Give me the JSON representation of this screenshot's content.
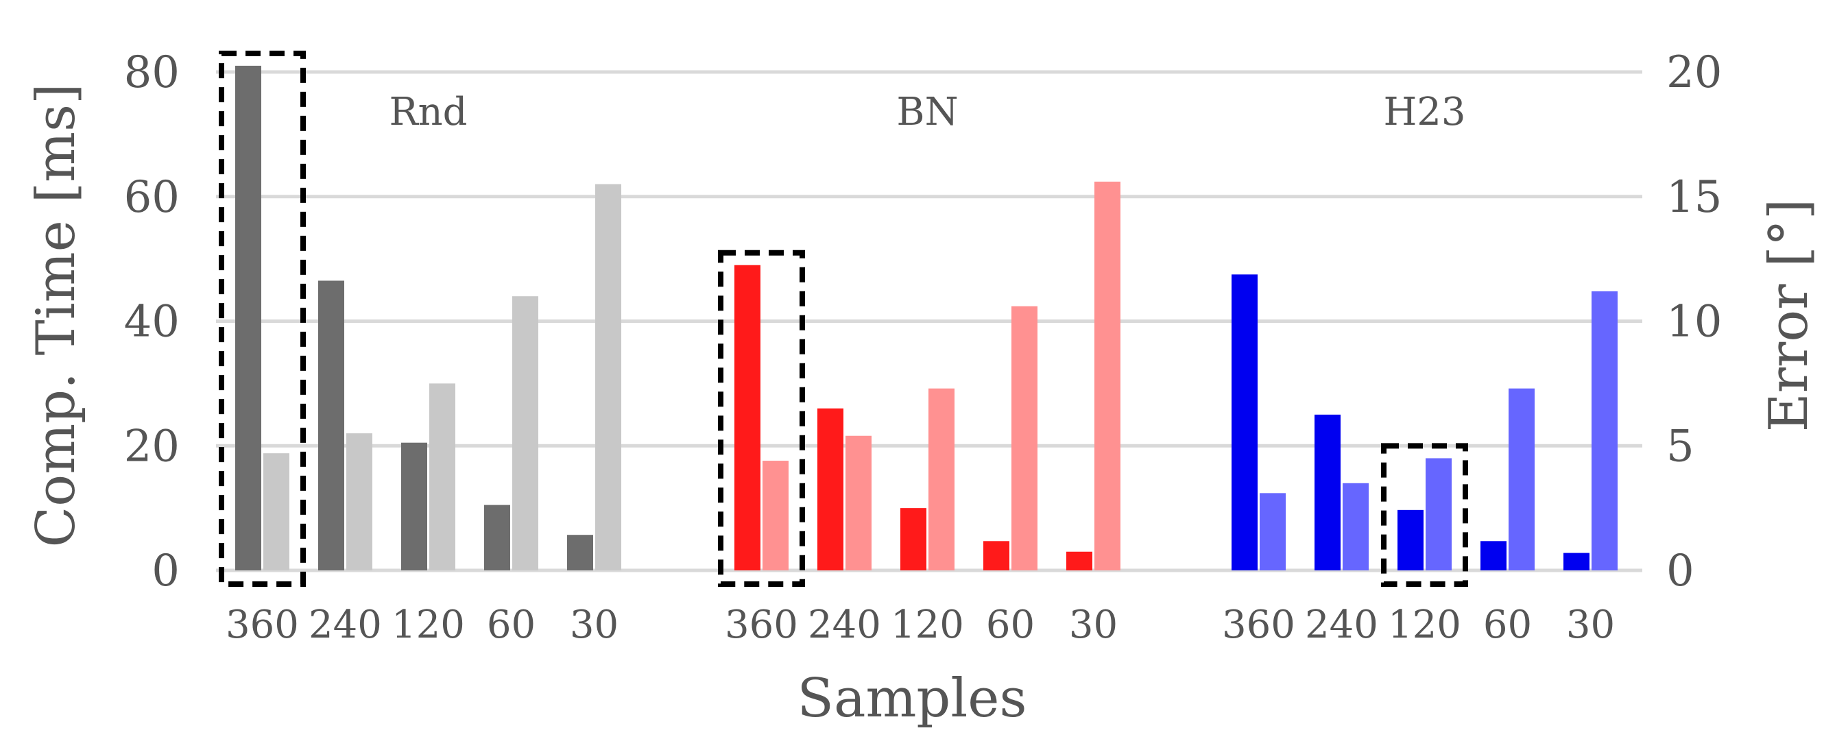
{
  "chart_data": {
    "type": "bar",
    "xlabel": "Samples",
    "ylabel_left": "Comp. Time [ms]",
    "ylabel_right": "Error [°]",
    "ylim_left": [
      0,
      80
    ],
    "ylim_right": [
      0,
      20
    ],
    "yticks_left": [
      "0",
      "20",
      "40",
      "60",
      "80"
    ],
    "yticks_right": [
      "0",
      "5",
      "10",
      "15",
      "20"
    ],
    "grid": true,
    "groups": [
      {
        "name": "Rnd",
        "categories": [
          "360",
          "240",
          "120",
          "60",
          "30"
        ],
        "time_values": [
          81,
          46.5,
          20.5,
          10.5,
          5.7
        ],
        "error_values": [
          4.7,
          5.5,
          7.5,
          11.0,
          15.5
        ],
        "time_color": "#6d6d6d",
        "error_color": "#c8c8c8",
        "highlight_index": 0
      },
      {
        "name": "BN",
        "categories": [
          "360",
          "240",
          "120",
          "60",
          "30"
        ],
        "time_values": [
          49,
          26,
          10,
          4.7,
          3
        ],
        "error_values": [
          4.4,
          5.4,
          7.3,
          10.6,
          15.6
        ],
        "time_color": "#ff1a1a",
        "error_color": "#ff9191",
        "highlight_index": 0
      },
      {
        "name": "H23",
        "categories": [
          "360",
          "240",
          "120",
          "60",
          "30"
        ],
        "time_values": [
          47.5,
          25,
          9.7,
          4.7,
          2.8
        ],
        "error_values": [
          3.1,
          3.5,
          4.5,
          7.3,
          11.2
        ],
        "time_color": "#0000f0",
        "error_color": "#6666ff",
        "highlight_index": 2
      }
    ]
  }
}
